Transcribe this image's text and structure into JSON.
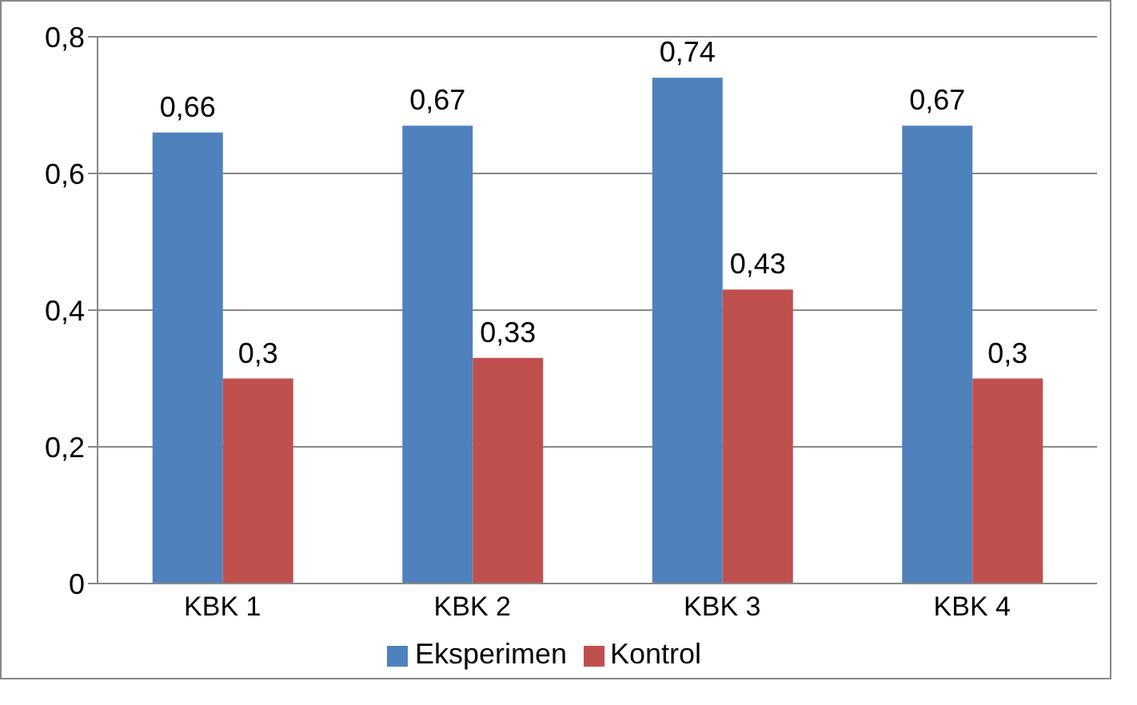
{
  "chart_data": {
    "type": "bar",
    "categories": [
      "KBK 1",
      "KBK 2",
      "KBK 3",
      "KBK 4"
    ],
    "series": [
      {
        "name": "Eksperimen",
        "color": "#4f81bd",
        "values": [
          0.66,
          0.67,
          0.74,
          0.67
        ],
        "value_labels": [
          "0,66",
          "0,67",
          "0,74",
          "0,67"
        ]
      },
      {
        "name": "Kontrol",
        "color": "#c0504d",
        "values": [
          0.3,
          0.33,
          0.43,
          0.3
        ],
        "value_labels": [
          "0,3",
          "0,33",
          "0,43",
          "0,3"
        ]
      }
    ],
    "ylim": [
      0,
      0.8
    ],
    "yticks": [
      {
        "value": 0,
        "label": "0"
      },
      {
        "value": 0.2,
        "label": "0,2"
      },
      {
        "value": 0.4,
        "label": "0,4"
      },
      {
        "value": 0.6,
        "label": "0,6"
      },
      {
        "value": 0.8,
        "label": "0,8"
      }
    ],
    "grid": "y",
    "legend": "bottom"
  }
}
